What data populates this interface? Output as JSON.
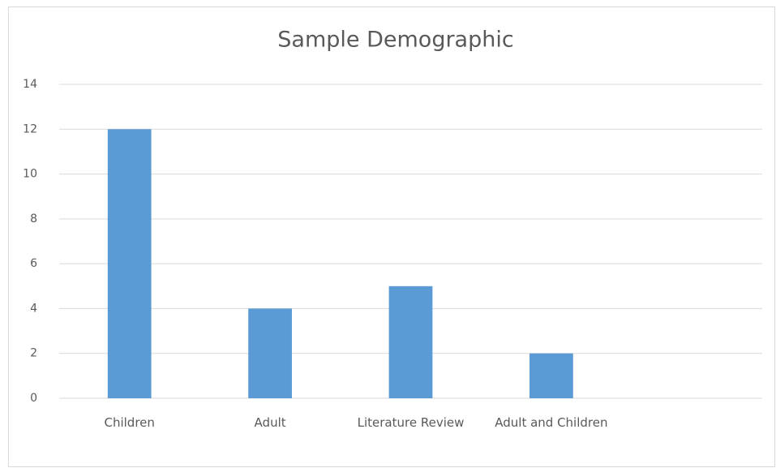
{
  "chart_data": {
    "type": "bar",
    "title": "Sample Demographic",
    "categories": [
      "Children",
      "Adult",
      "Literature Review",
      "Adult and Children",
      null
    ],
    "values": [
      12,
      4,
      5,
      2,
      null
    ],
    "color": "#5b9bd5",
    "ylim": [
      0,
      14
    ],
    "yticks": [
      0,
      2,
      4,
      6,
      8,
      10,
      12,
      14
    ],
    "grid": true
  }
}
